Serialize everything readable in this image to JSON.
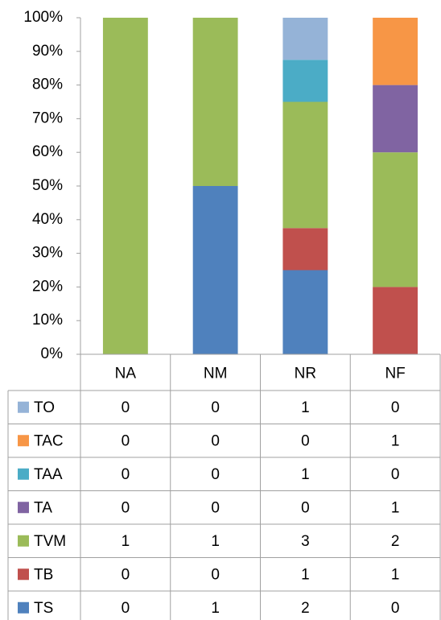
{
  "chart_data": {
    "type": "stacked_percent_bar",
    "categories": [
      "NA",
      "NM",
      "NR",
      "NF"
    ],
    "series": [
      {
        "name": "TO",
        "color": "#95b3d7",
        "values": [
          0,
          0,
          1,
          0
        ]
      },
      {
        "name": "TAC",
        "color": "#f79646",
        "values": [
          0,
          0,
          0,
          1
        ]
      },
      {
        "name": "TAA",
        "color": "#4bacc6",
        "values": [
          0,
          0,
          1,
          0
        ]
      },
      {
        "name": "TA",
        "color": "#8064a2",
        "values": [
          0,
          0,
          0,
          1
        ]
      },
      {
        "name": "TVM",
        "color": "#9bbb59",
        "values": [
          1,
          1,
          3,
          2
        ]
      },
      {
        "name": "TB",
        "color": "#c0504d",
        "values": [
          0,
          0,
          1,
          1
        ]
      },
      {
        "name": "TS",
        "color": "#4f81bd",
        "values": [
          0,
          1,
          2,
          0
        ]
      }
    ],
    "ylim": [
      0,
      100
    ],
    "yticks": [
      {
        "value": 0,
        "label": "0%"
      },
      {
        "value": 10,
        "label": "10%"
      },
      {
        "value": 20,
        "label": "20%"
      },
      {
        "value": 30,
        "label": "30%"
      },
      {
        "value": 40,
        "label": "40%"
      },
      {
        "value": 50,
        "label": "50%"
      },
      {
        "value": 60,
        "label": "60%"
      },
      {
        "value": 70,
        "label": "70%"
      },
      {
        "value": 80,
        "label": "80%"
      },
      {
        "value": 90,
        "label": "90%"
      },
      {
        "value": 100,
        "label": "100%"
      }
    ]
  }
}
